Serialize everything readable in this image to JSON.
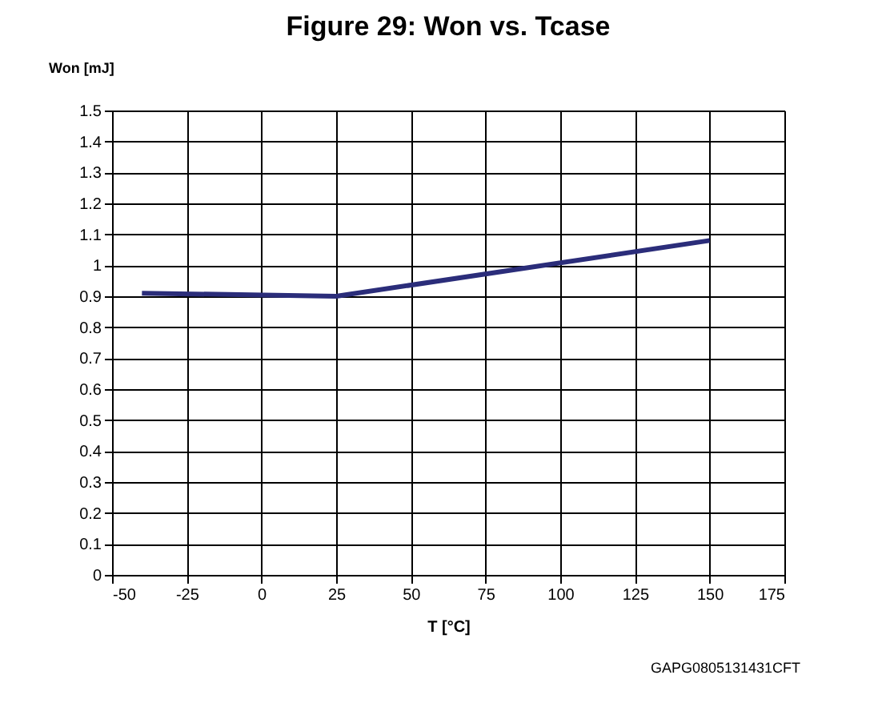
{
  "chart_data": {
    "type": "line",
    "title": "Figure 29: Won vs. Tcase",
    "xlabel": "T [°C]",
    "ylabel": "Won [mJ]",
    "x": [
      -40,
      25,
      150
    ],
    "series": [
      {
        "color": "#2b2d7a",
        "values": [
          0.91,
          0.9,
          1.08
        ]
      }
    ],
    "xlim": [
      -50,
      175
    ],
    "xticks": [
      -50,
      -25,
      0,
      25,
      50,
      75,
      100,
      125,
      150,
      175
    ],
    "ylim": [
      0,
      1.5
    ],
    "yticks": [
      0,
      0.1,
      0.2,
      0.3,
      0.4,
      0.5,
      0.6,
      0.7,
      0.8,
      0.9,
      1,
      1.1,
      1.2,
      1.3,
      1.4,
      1.5
    ],
    "grid": true,
    "marker": "none",
    "line_style": "solid",
    "annotations": [
      "GAPG0805131431CFT"
    ]
  }
}
